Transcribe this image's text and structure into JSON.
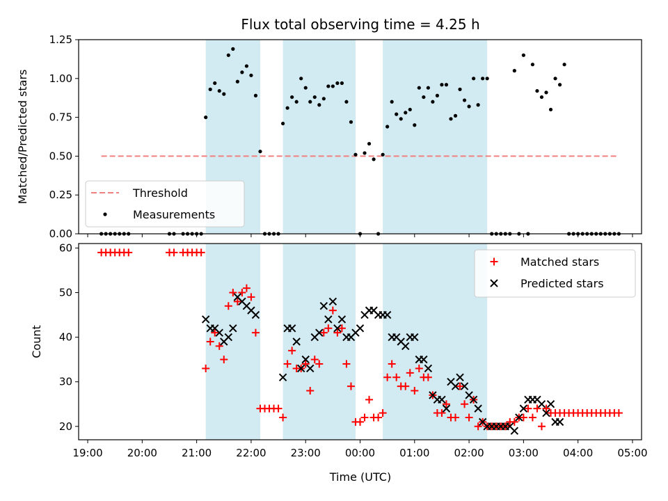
{
  "chart_data": {
    "title": "Flux total observing time = 4.25 h",
    "xlabel": "Time (UTC)",
    "x_ticks": [
      "19:00",
      "20:00",
      "21:00",
      "22:00",
      "23:00",
      "00:00",
      "01:00",
      "02:00",
      "03:00",
      "04:00",
      "05:00"
    ],
    "x_range": [
      "18:50",
      "05:10"
    ],
    "shaded_intervals": [
      [
        "21:10",
        "22:10"
      ],
      [
        "22:35",
        "23:55"
      ],
      [
        "00:25",
        "02:20"
      ]
    ],
    "panels": [
      {
        "type": "scatter",
        "ylabel": "Matched/Predicted stars",
        "ylim": [
          0,
          1.25
        ],
        "y_ticks": [
          "0.00",
          "0.25",
          "0.50",
          "0.75",
          "1.00",
          "1.25"
        ],
        "legend_position": "lower-left",
        "series": [
          {
            "name": "Threshold",
            "kind": "dashed-line",
            "color": "#f08080",
            "x": [
              "19:15",
              "04:45"
            ],
            "y": [
              0.5,
              0.5
            ]
          },
          {
            "name": "Measurements",
            "kind": "dots",
            "color": "#000000",
            "x": [
              "19:15",
              "19:20",
              "19:25",
              "19:30",
              "19:35",
              "19:40",
              "19:45",
              "20:30",
              "20:35",
              "20:45",
              "20:50",
              "20:55",
              "21:00",
              "21:05",
              "21:10",
              "21:15",
              "21:20",
              "21:25",
              "21:30",
              "21:35",
              "21:40",
              "21:45",
              "21:50",
              "21:55",
              "22:00",
              "22:05",
              "22:10",
              "22:15",
              "22:20",
              "22:25",
              "22:30",
              "22:35",
              "22:40",
              "22:45",
              "22:50",
              "22:55",
              "23:00",
              "23:05",
              "23:10",
              "23:15",
              "23:20",
              "23:25",
              "23:30",
              "23:35",
              "23:40",
              "23:45",
              "23:50",
              "23:55",
              "00:00",
              "00:05",
              "00:10",
              "00:15",
              "00:20",
              "00:25",
              "00:30",
              "00:35",
              "00:40",
              "00:45",
              "00:50",
              "00:55",
              "01:00",
              "01:05",
              "01:10",
              "01:15",
              "01:20",
              "01:25",
              "01:30",
              "01:35",
              "01:40",
              "01:45",
              "01:50",
              "01:55",
              "02:00",
              "02:05",
              "02:10",
              "02:15",
              "02:20",
              "02:25",
              "02:30",
              "02:35",
              "02:40",
              "02:45",
              "02:50",
              "02:55",
              "03:00",
              "03:05",
              "03:10",
              "03:15",
              "03:20",
              "03:25",
              "03:30",
              "03:35",
              "03:40",
              "03:45",
              "03:50",
              "03:55",
              "04:00",
              "04:05",
              "04:10",
              "04:15",
              "04:20",
              "04:25",
              "04:30",
              "04:35",
              "04:40",
              "04:45"
            ],
            "y": [
              0,
              0,
              0,
              0,
              0,
              0,
              0,
              0,
              0,
              0,
              0,
              0,
              0,
              0,
              0.75,
              0.93,
              0.97,
              0.92,
              0.9,
              1.15,
              1.19,
              0.98,
              1.04,
              1.08,
              1.02,
              0.89,
              0.53,
              0,
              0,
              0,
              0,
              0.71,
              0.81,
              0.88,
              0.85,
              1.0,
              0.94,
              0.85,
              0.88,
              0.83,
              0.87,
              0.95,
              0.95,
              0.97,
              0.97,
              0.85,
              0.72,
              0.51,
              0,
              0.52,
              0.58,
              0.48,
              0,
              0.51,
              0.69,
              0.85,
              0.77,
              0.74,
              0.78,
              0.8,
              0.7,
              0.94,
              0.88,
              0.94,
              0.85,
              0.89,
              0.96,
              0.96,
              0.74,
              0.76,
              0.93,
              0.86,
              0.82,
              1.0,
              0.83,
              1.0,
              1.0,
              0,
              0,
              0,
              0,
              0,
              1.05,
              0,
              1.15,
              0,
              1.09,
              0.92,
              0.88,
              0.91,
              0.8,
              1.0,
              0.96,
              1.09,
              0,
              0,
              0,
              0,
              0,
              0,
              0,
              0,
              0,
              0,
              0,
              0
            ]
          }
        ]
      },
      {
        "type": "scatter",
        "ylabel": "Count",
        "ylim": [
          17,
          61
        ],
        "y_ticks": [
          "20",
          "30",
          "40",
          "50",
          "60"
        ],
        "legend_position": "upper-right",
        "series": [
          {
            "name": "Matched stars",
            "marker": "plus",
            "color": "#ff0000",
            "x": [
              "19:15",
              "19:20",
              "19:25",
              "19:30",
              "19:35",
              "19:40",
              "19:45",
              "20:30",
              "20:35",
              "20:45",
              "20:50",
              "20:55",
              "21:00",
              "21:05",
              "21:10",
              "21:15",
              "21:20",
              "21:25",
              "21:30",
              "21:35",
              "21:40",
              "21:45",
              "21:50",
              "21:55",
              "22:00",
              "22:05",
              "22:10",
              "22:15",
              "22:20",
              "22:25",
              "22:30",
              "22:35",
              "22:40",
              "22:45",
              "22:50",
              "22:55",
              "23:00",
              "23:05",
              "23:10",
              "23:15",
              "23:20",
              "23:25",
              "23:30",
              "23:35",
              "23:40",
              "23:45",
              "23:50",
              "23:55",
              "00:00",
              "00:05",
              "00:10",
              "00:15",
              "00:20",
              "00:25",
              "00:30",
              "00:35",
              "00:40",
              "00:45",
              "00:50",
              "00:55",
              "01:00",
              "01:05",
              "01:10",
              "01:15",
              "01:20",
              "01:25",
              "01:30",
              "01:35",
              "01:40",
              "01:45",
              "01:50",
              "01:55",
              "02:00",
              "02:05",
              "02:10",
              "02:15",
              "02:20",
              "02:25",
              "02:30",
              "02:35",
              "02:40",
              "02:45",
              "02:50",
              "02:55",
              "03:00",
              "03:05",
              "03:10",
              "03:15",
              "03:20",
              "03:25",
              "03:30",
              "03:35",
              "03:40",
              "03:45",
              "03:50",
              "03:55",
              "04:00",
              "04:05",
              "04:10",
              "04:15",
              "04:20",
              "04:25",
              "04:30",
              "04:35",
              "04:40",
              "04:45"
            ],
            "y": [
              59,
              59,
              59,
              59,
              59,
              59,
              59,
              59,
              59,
              59,
              59,
              59,
              59,
              59,
              33,
              39,
              41,
              38,
              35,
              47,
              50,
              48,
              50,
              51,
              49,
              41,
              24,
              24,
              24,
              24,
              24,
              22,
              34,
              37,
              33,
              33,
              34,
              28,
              35,
              34,
              41,
              42,
              46,
              41,
              42,
              34,
              29,
              21,
              21,
              22,
              26,
              22,
              22,
              23,
              31,
              34,
              31,
              29,
              29,
              32,
              28,
              33,
              31,
              31,
              27,
              23,
              23,
              25,
              22,
              22,
              29,
              25,
              22,
              26,
              20,
              21,
              20,
              20,
              20,
              20,
              20,
              21,
              21,
              22,
              22,
              24,
              22,
              24,
              20,
              24,
              23,
              23,
              23,
              23,
              23,
              23,
              23,
              23,
              23,
              23,
              23,
              23,
              23,
              23,
              23,
              23
            ]
          },
          {
            "name": "Predicted stars",
            "marker": "x",
            "color": "#000000",
            "x": [
              "21:10",
              "21:15",
              "21:20",
              "21:25",
              "21:30",
              "21:35",
              "21:40",
              "21:45",
              "21:50",
              "21:55",
              "22:00",
              "22:05",
              "22:35",
              "22:40",
              "22:45",
              "22:50",
              "22:55",
              "23:00",
              "23:05",
              "23:10",
              "23:15",
              "23:20",
              "23:25",
              "23:30",
              "23:35",
              "23:40",
              "23:45",
              "23:50",
              "23:55",
              "00:00",
              "00:05",
              "00:10",
              "00:15",
              "00:20",
              "00:25",
              "00:30",
              "00:35",
              "00:40",
              "00:45",
              "00:50",
              "00:55",
              "01:00",
              "01:05",
              "01:10",
              "01:15",
              "01:20",
              "01:25",
              "01:30",
              "01:35",
              "01:40",
              "01:45",
              "01:50",
              "01:55",
              "02:00",
              "02:05",
              "02:10",
              "02:15",
              "02:20",
              "02:25",
              "02:30",
              "02:35",
              "02:40",
              "02:45",
              "02:50",
              "02:55",
              "03:00",
              "03:05",
              "03:10",
              "03:15",
              "03:20",
              "03:25",
              "03:30",
              "03:35",
              "03:40"
            ],
            "y": [
              44,
              42,
              42,
              41,
              39,
              40,
              42,
              49,
              48,
              47,
              46,
              45,
              31,
              42,
              42,
              39,
              33,
              35,
              33,
              40,
              41,
              47,
              44,
              48,
              42,
              44,
              40,
              40,
              41,
              42,
              45,
              46,
              46,
              45,
              45,
              45,
              40,
              40,
              39,
              38,
              40,
              40,
              35,
              35,
              33,
              27,
              26,
              26,
              24,
              30,
              29,
              31,
              29,
              27,
              26,
              24,
              21,
              20,
              20,
              20,
              20,
              20,
              20,
              19,
              22,
              24,
              26,
              26,
              26,
              25,
              23,
              25,
              21,
              21
            ]
          }
        ]
      }
    ]
  }
}
